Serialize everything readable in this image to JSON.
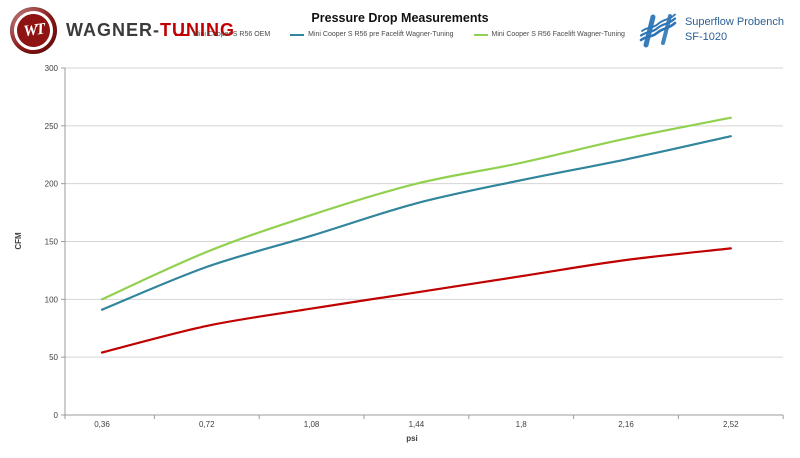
{
  "header": {
    "brand": {
      "emblem_text": "WT",
      "name_dark": "WAGNER-",
      "name_red": "TUNING"
    },
    "superflow": {
      "line1": "Superflow Probench",
      "line2": "SF-1020"
    }
  },
  "chart_data": {
    "type": "line",
    "title": "Pressure Drop Measurements",
    "xlabel": "psi",
    "ylabel": "CFM",
    "categories": [
      "0,36",
      "0,72",
      "1,08",
      "1,44",
      "1,8",
      "2,16",
      "2,52"
    ],
    "series": [
      {
        "name": "Mini Cooper S R56 OEM",
        "color": "#c00000",
        "values": [
          54,
          77,
          92,
          106,
          120,
          134,
          144
        ]
      },
      {
        "name": "Mini Cooper S R56 pre Facelift Wagner-Tuning",
        "color": "#31859c",
        "values": [
          91,
          128,
          155,
          183,
          203,
          221,
          241
        ]
      },
      {
        "name": "Mini Cooper S R56 Facelift Wagner-Tuning",
        "color": "#92d050",
        "values": [
          100,
          141,
          173,
          200,
          218,
          239,
          257
        ]
      }
    ],
    "ylim": [
      0,
      300
    ],
    "ytick_step": 50,
    "grid": true,
    "legend_position": "top",
    "smooth": true
  },
  "colors": {
    "grid": "#d5d5d5",
    "axis": "#9b9b9b",
    "tick_text": "#3f3f3f",
    "brand_dark": "#3b3b3b",
    "brand_red": "#c00000",
    "superflow_blue": "#2e75b6",
    "superflow_text": "#2b5f94"
  }
}
